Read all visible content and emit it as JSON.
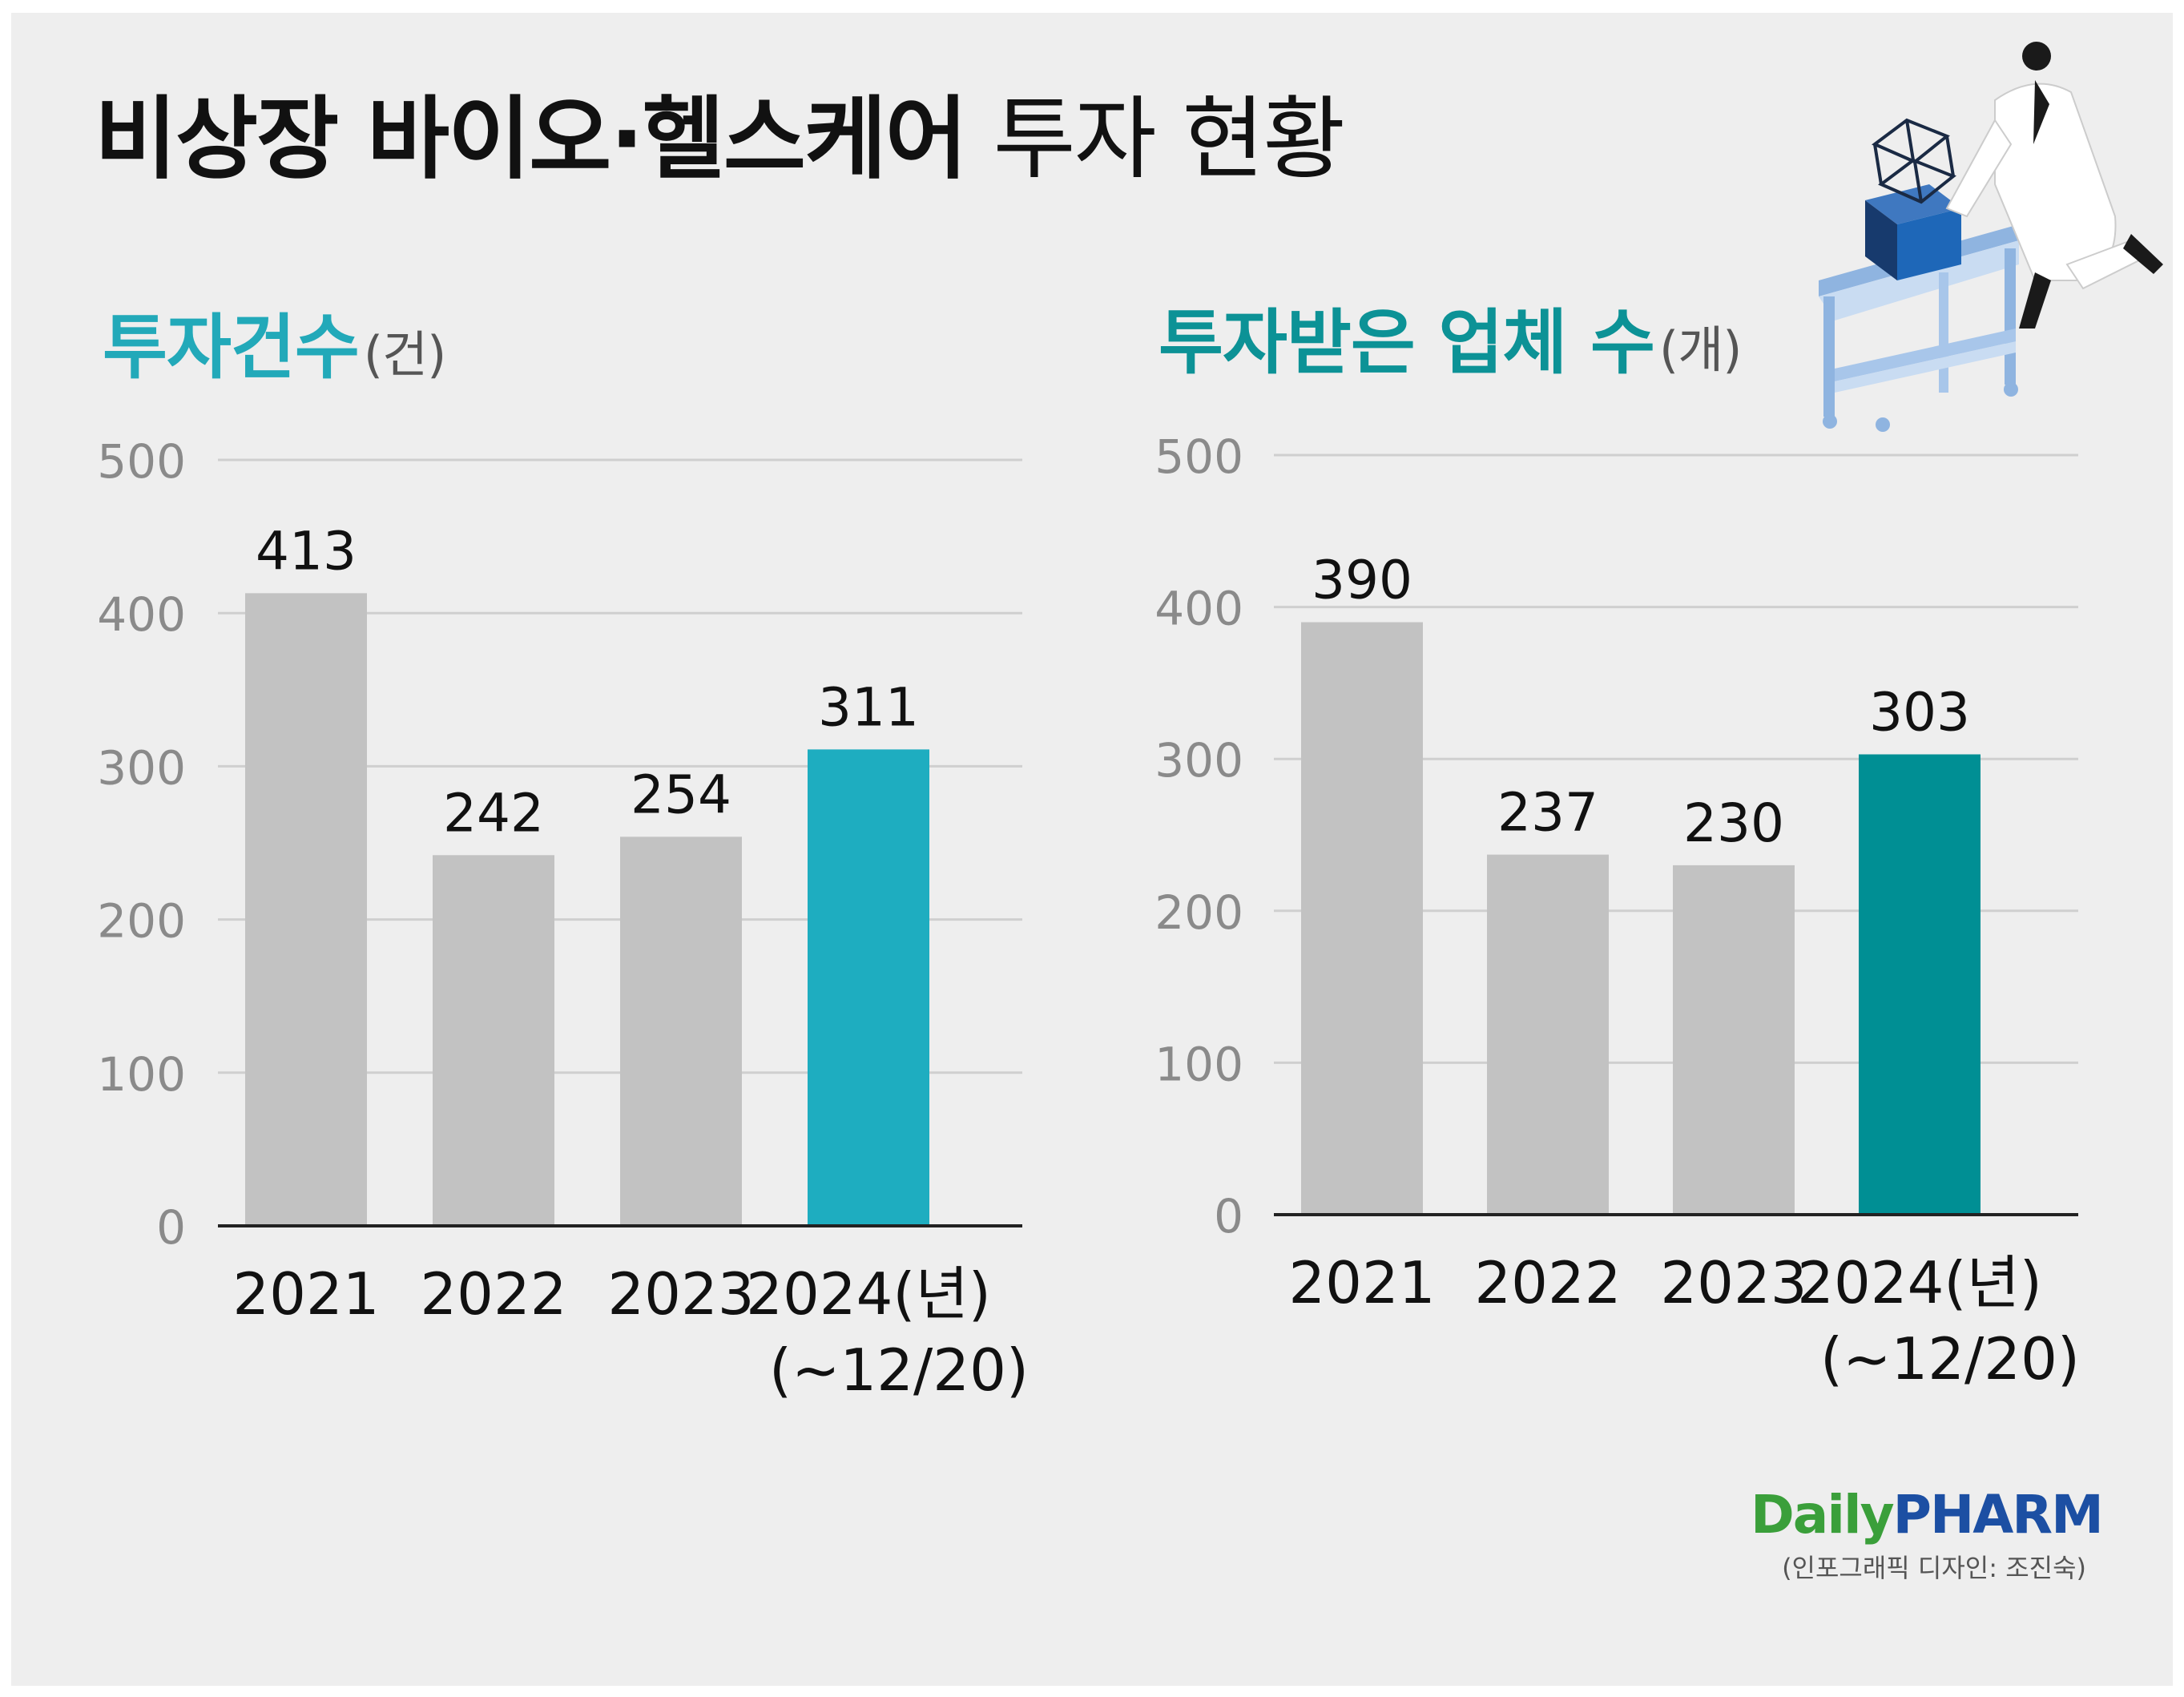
{
  "title": {
    "bold": "비상장 바이오·헬스케어",
    "regular": "투자 현황"
  },
  "colors": {
    "bar_default": "#c2c2c2",
    "left_highlight": "#1eadc0",
    "right_highlight": "#008f94",
    "left_title": "#22a9b9",
    "right_title": "#0c9296",
    "grid": "#cfcfcf",
    "axis": "#222222"
  },
  "illustration": {
    "description_icon": "researcher-pushing-cart-icon"
  },
  "logo": {
    "daily": "Daily",
    "pharm": "PHARM"
  },
  "credit": "(인포그래픽 디자인: 조진숙)",
  "chart_data": [
    {
      "type": "bar",
      "title": "투자건수",
      "unit": "(건)",
      "categories": [
        "2021",
        "2022",
        "2023",
        "2024(년)"
      ],
      "category_sublabels": [
        "",
        "",
        "",
        "(~12/20)"
      ],
      "values": [
        413,
        242,
        254,
        311
      ],
      "value_labels": [
        "413",
        "242",
        "254",
        "311"
      ],
      "highlight_index": 3,
      "yticks": [
        "0",
        "100",
        "200",
        "300",
        "400",
        "500"
      ],
      "ylim": [
        0,
        500
      ],
      "grid": true
    },
    {
      "type": "bar",
      "title": "투자받은 업체 수",
      "unit": "(개)",
      "categories": [
        "2021",
        "2022",
        "2023",
        "2024(년)"
      ],
      "category_sublabels": [
        "",
        "",
        "",
        "(~12/20)"
      ],
      "values": [
        390,
        237,
        230,
        303
      ],
      "value_labels": [
        "390",
        "237",
        "230",
        "303"
      ],
      "highlight_index": 3,
      "yticks": [
        "0",
        "100",
        "200",
        "300",
        "400",
        "500"
      ],
      "ylim": [
        0,
        500
      ],
      "grid": true
    }
  ]
}
